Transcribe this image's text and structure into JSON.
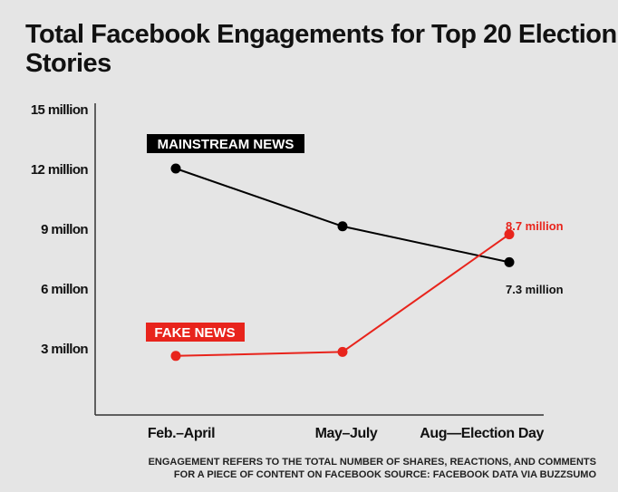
{
  "chart_data": {
    "type": "line",
    "title": "Total Facebook Engagements for Top 20 Election Stories",
    "categories": [
      "Feb.–April",
      "May–July",
      "Aug—Election Day"
    ],
    "yticks": [
      {
        "value": 3,
        "label": "3 millon"
      },
      {
        "value": 6,
        "label": "6 millon"
      },
      {
        "value": 9,
        "label": "9 millon"
      },
      {
        "value": 12,
        "label": "12 million"
      },
      {
        "value": 15,
        "label": "15 million"
      }
    ],
    "ylim": [
      0,
      15
    ],
    "yunit": "million",
    "grid": false,
    "series": [
      {
        "name": "MAINSTREAM NEWS",
        "color": "#000000",
        "values": [
          12,
          9.1,
          7.3
        ],
        "end_label": "7.3 million"
      },
      {
        "name": "FAKE NEWS",
        "color": "#e8241c",
        "values": [
          2.6,
          2.8,
          8.7
        ],
        "end_label": "8.7 million"
      }
    ],
    "note": [
      "ENGAGEMENT REFERS TO THE TOTAL NUMBER OF SHARES, REACTIONS, AND COMMENTS",
      "FOR A PIECE OF CONTENT ON FACEBOOK SOURCE: FACEBOOK DATA VIA BUZZSUMO"
    ]
  }
}
